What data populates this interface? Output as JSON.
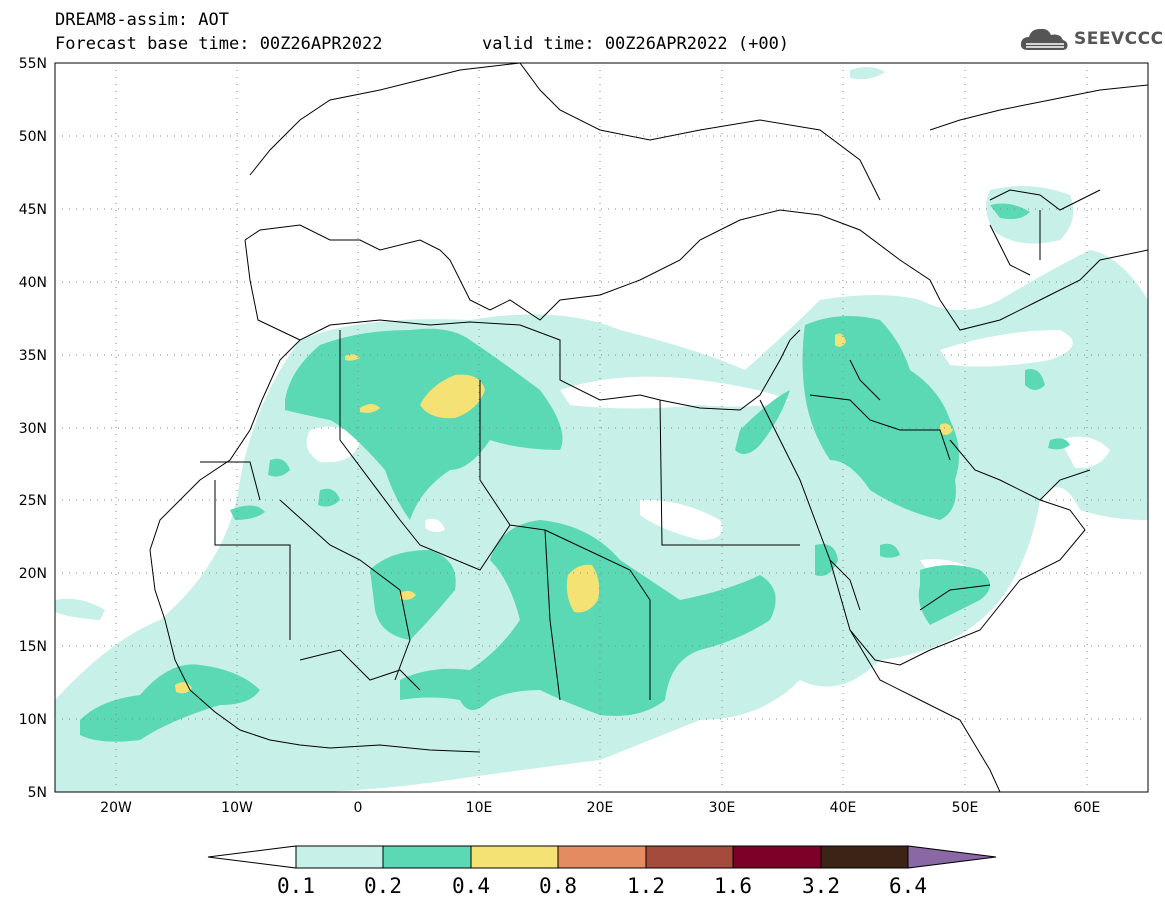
{
  "header": {
    "title": "DREAM8-assim: AOT",
    "base_time": "Forecast base time: 00Z26APR2022",
    "valid_time": "valid time: 00Z26APR2022 (+00)"
  },
  "logo": {
    "text": "SEEVCCC",
    "icon": "cloud-icon"
  },
  "axes": {
    "lat_labels": [
      "55N",
      "50N",
      "45N",
      "40N",
      "35N",
      "30N",
      "25N",
      "20N",
      "15N",
      "10N",
      "5N"
    ],
    "lon_labels": [
      "20W",
      "10W",
      "0",
      "10E",
      "20E",
      "30E",
      "40E",
      "50E",
      "60E"
    ]
  },
  "colorbar": {
    "labels": [
      "0.1",
      "0.2",
      "0.4",
      "0.8",
      "1.2",
      "1.6",
      "3.2",
      "6.4"
    ],
    "colors": [
      "#ffffff",
      "#c7f0e8",
      "#5ad9b4",
      "#f4e374",
      "#e48b62",
      "#a54b3c",
      "#7c0027",
      "#3b2416",
      "#8a68a6"
    ]
  },
  "map": {
    "extent": {
      "lon": [
        -25,
        65
      ],
      "lat": [
        5,
        55
      ]
    },
    "grid": "dotted"
  }
}
